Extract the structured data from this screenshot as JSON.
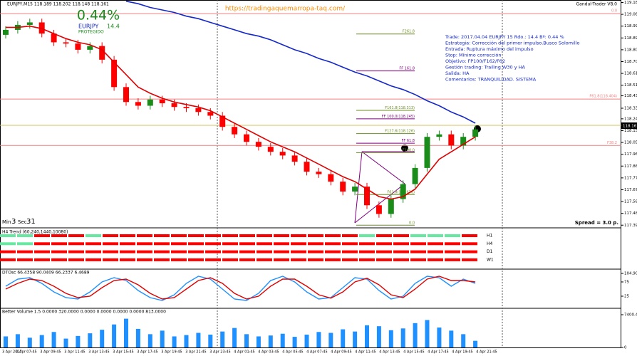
{
  "chart_data": [
    {
      "type": "candlestick",
      "title": "EURJPY,M15 118.189 118.202 118.148 118.161",
      "watermark": "Gandul-Trader V8.0",
      "url": "https://tradingaquemarropa-taq.com/",
      "gain": "0.44%",
      "symbol": "EURJPY",
      "pips": 14.4,
      "status": "PROTEGIDO",
      "notes": [
        "Trade: 2017.04.04 EURJPY 15  Rdo.: 14.4  Bº: 0.44 %",
        "Estrategia: Corrección  del primer impulso.Busco Solomillo",
        "Entrada: Ruptura máximo del impulso",
        "Stop: Mínimo corrección",
        "Objetivo: FP100/F162/F62",
        "Gestión trading: Trailing W30 y HA",
        "Salida: HA",
        "Comentarios: TRANQUILIDAD. SISTEMA"
      ],
      "timer": {
        "min_label": "Min",
        "min": 3,
        "sec_label": "Sec",
        "sec": 31
      },
      "spread": "Spread = 3.0 p.",
      "last_price": 118.161,
      "up_color": "#1a8c1a",
      "down_color": "#ff0000",
      "open": [
        118.92,
        118.96,
        119.0,
        119.02,
        118.93,
        118.86,
        118.85,
        118.8,
        118.83,
        118.72,
        118.5,
        118.38,
        118.35,
        118.4,
        118.37,
        118.34,
        118.33,
        118.3,
        118.27,
        118.18,
        118.12,
        118.06,
        118.02,
        117.98,
        117.95,
        117.9,
        117.82,
        117.8,
        117.74,
        117.66,
        117.7,
        117.55,
        117.48,
        117.6,
        117.72,
        117.85,
        118.1,
        118.12,
        118.03,
        118.1
      ],
      "high": [
        118.99,
        119.03,
        119.05,
        119.05,
        118.96,
        118.89,
        118.88,
        118.86,
        118.86,
        118.75,
        118.53,
        118.41,
        118.43,
        118.43,
        118.4,
        118.37,
        118.36,
        118.33,
        118.3,
        118.21,
        118.15,
        118.09,
        118.05,
        118.01,
        117.98,
        117.93,
        117.85,
        117.83,
        117.77,
        117.73,
        117.73,
        117.58,
        117.63,
        117.75,
        117.88,
        118.13,
        118.15,
        118.15,
        118.13,
        118.19
      ],
      "low": [
        118.89,
        118.93,
        118.97,
        118.9,
        118.83,
        118.82,
        118.77,
        118.77,
        118.69,
        118.47,
        118.35,
        118.32,
        118.32,
        118.34,
        118.31,
        118.3,
        118.27,
        118.24,
        118.15,
        118.09,
        118.03,
        117.99,
        117.95,
        117.92,
        117.87,
        117.79,
        117.77,
        117.71,
        117.63,
        117.63,
        117.52,
        117.45,
        117.45,
        117.57,
        117.69,
        117.82,
        118.07,
        118.0,
        118.0,
        118.07
      ],
      "close": [
        118.96,
        119.0,
        119.02,
        118.93,
        118.86,
        118.85,
        118.8,
        118.83,
        118.72,
        118.5,
        118.38,
        118.35,
        118.4,
        118.37,
        118.34,
        118.33,
        118.3,
        118.27,
        118.18,
        118.12,
        118.06,
        118.02,
        117.98,
        117.95,
        117.9,
        117.82,
        117.8,
        117.74,
        117.66,
        117.7,
        117.55,
        117.48,
        117.6,
        117.72,
        117.85,
        118.1,
        118.12,
        118.03,
        118.1,
        118.16
      ],
      "lines": [
        {
          "color": "#e00000",
          "values": [
            118.98,
            118.98,
            118.99,
            118.97,
            118.93,
            118.89,
            118.86,
            118.84,
            118.8,
            118.7,
            118.6,
            118.5,
            118.45,
            118.41,
            118.38,
            118.36,
            118.34,
            118.31,
            118.26,
            118.21,
            118.16,
            118.11,
            118.06,
            118.02,
            117.98,
            117.93,
            117.88,
            117.83,
            117.78,
            117.74,
            117.68,
            117.62,
            117.6,
            117.62,
            117.68,
            117.8,
            117.92,
            117.98,
            118.04,
            118.1
          ]
        },
        {
          "color": "#1428c8",
          "values": [
            null,
            null,
            null,
            null,
            null,
            null,
            null,
            null,
            null,
            null,
            119.19,
            119.17,
            119.14,
            119.12,
            119.1,
            119.07,
            119.05,
            119.02,
            118.99,
            118.96,
            118.93,
            118.91,
            118.88,
            118.84,
            118.8,
            118.77,
            118.73,
            118.7,
            118.66,
            118.62,
            118.59,
            118.55,
            118.51,
            118.48,
            118.44,
            118.39,
            118.35,
            118.3,
            118.26,
            118.21
          ]
        }
      ],
      "levels": [
        {
          "label": "0.0",
          "value": 119.09,
          "color": "#f08080"
        },
        {
          "label": "F61.8(118.404)",
          "value": 118.404,
          "color": "#f08080"
        },
        {
          "label": "F38.2",
          "value": 118.031,
          "color": "#f08080"
        }
      ],
      "fibs": [
        {
          "label": "F261.8",
          "value": 118.927,
          "color": "#6b8e23"
        },
        {
          "label": "FF 161.8",
          "value": 118.63,
          "color": "#800080"
        },
        {
          "label": "F161.8(118.313)",
          "value": 118.313,
          "color": "#6b8e23"
        },
        {
          "label": "FF 100.0(118.245)",
          "value": 118.245,
          "color": "#800080"
        },
        {
          "label": "F127.6(118.126)",
          "value": 118.126,
          "color": "#6b8e23"
        },
        {
          "label": "FF 61.8",
          "value": 118.049,
          "color": "#800080"
        },
        {
          "label": "F100.0",
          "value": 117.973,
          "color": "#6b8e23"
        },
        {
          "label": "F61.8(117.636)",
          "value": 117.636,
          "color": "#6b8e23"
        },
        {
          "label": "0.0",
          "value": 117.39,
          "color": "#6b8e23"
        }
      ],
      "ylim": [
        117.38,
        119.2
      ],
      "yticks": [
        {
          "value": 119.18,
          "label": "119.180"
        },
        119.085,
        {
          "value": 118.99,
          "label": "118.990"
        },
        118.895,
        {
          "value": 118.8,
          "label": "118.800"
        },
        118.705,
        {
          "value": 118.61,
          "label": "118.610"
        },
        118.515,
        {
          "value": 118.43,
          "label": "118.430"
        },
        {
          "value": 118.33,
          "label": "118.330"
        },
        118.245,
        {
          "value": 118.15,
          "label": "118.150"
        },
        118.055,
        {
          "value": 117.96,
          "label": "117.960"
        },
        117.865,
        {
          "value": 117.77,
          "label": "117.770"
        },
        117.675,
        {
          "value": 117.58,
          "label": "117.580"
        },
        117.485,
        {
          "value": 117.39,
          "label": "117.390"
        }
      ]
    },
    {
      "type": "trend",
      "title": "H4 Trend (60,240,1440,10080)",
      "up_color": "#66e8a0",
      "down_color": "#ff0000",
      "rows": [
        {
          "label": "H1",
          "values": [
            1,
            1,
            0,
            0,
            0,
            1,
            0,
            0,
            0,
            0,
            0,
            0,
            0,
            0,
            0,
            0,
            0,
            0,
            0,
            0,
            0,
            1,
            0,
            0,
            1,
            1,
            1,
            0
          ]
        },
        {
          "label": "H4",
          "values": [
            1,
            1,
            0,
            0,
            0,
            0,
            0,
            0,
            0,
            0,
            0,
            0,
            0,
            0,
            0,
            0,
            0,
            0,
            0,
            0,
            0,
            0,
            0,
            0,
            0,
            0,
            0,
            0
          ]
        },
        {
          "label": "D1",
          "values": [
            0,
            0,
            0,
            0,
            0,
            0,
            0,
            0,
            0,
            0,
            0,
            0,
            0,
            0,
            0,
            0,
            0,
            0,
            0,
            0,
            0,
            0,
            0,
            0,
            0,
            0,
            0,
            0
          ]
        },
        {
          "label": "W1",
          "values": [
            0,
            0,
            0,
            0,
            0,
            0,
            0,
            0,
            0,
            0,
            0,
            0,
            0,
            0,
            0,
            0,
            0,
            0,
            0,
            0,
            0,
            0,
            0,
            0,
            0,
            0,
            0,
            0
          ]
        }
      ]
    },
    {
      "type": "line",
      "title": "DTOsc 66.4358 90.0409 66.2337 6.4689",
      "series": [
        {
          "color": "#1e90ff",
          "values": [
            60,
            85,
            90,
            70,
            40,
            20,
            15,
            40,
            75,
            90,
            80,
            45,
            20,
            10,
            30,
            70,
            95,
            85,
            50,
            15,
            10,
            35,
            80,
            95,
            75,
            40,
            15,
            20,
            55,
            90,
            85,
            45,
            15,
            25,
            70,
            95,
            90,
            60,
            85,
            70
          ]
        },
        {
          "color": "#e00000",
          "values": [
            50,
            70,
            85,
            80,
            60,
            35,
            20,
            25,
            55,
            80,
            85,
            65,
            35,
            15,
            20,
            50,
            80,
            90,
            70,
            35,
            15,
            25,
            60,
            85,
            85,
            60,
            30,
            18,
            40,
            75,
            88,
            65,
            30,
            20,
            50,
            85,
            95,
            80,
            80,
            75
          ]
        }
      ],
      "ylim": [
        -10,
        104.9062
      ],
      "yticks": [
        104.9062,
        75,
        25
      ]
    },
    {
      "type": "bar",
      "title": "Better Volume 1.5 0.0000 320.0000 0.0000 0.0000 0.0000 0.0000 813.0000",
      "color": "#1e90ff",
      "values": [
        2500,
        3000,
        2200,
        2800,
        3500,
        2000,
        2600,
        3200,
        4000,
        5200,
        6500,
        4200,
        3000,
        3800,
        2500,
        2800,
        3300,
        2900,
        3600,
        4400,
        3000,
        2500,
        2700,
        3100,
        2400,
        2900,
        3500,
        3300,
        4100,
        3600,
        5000,
        4800,
        3900,
        4300,
        5500,
        6200,
        4500,
        3800,
        3000,
        1500
      ],
      "ylim": [
        0,
        7400.4
      ],
      "yticks": [
        7400.4,
        0
      ],
      "time_labels": [
        "3 Apr 2017",
        "3 Apr 07:45",
        "3 Apr 09:45",
        "3 Apr 11:45",
        "3 Apr 13:45",
        "3 Apr 15:45",
        "3 Apr 17:45",
        "3 Apr 19:45",
        "3 Apr 21:45",
        "3 Apr 23:45",
        "4 Apr 01:45",
        "4 Apr 03:45",
        "4 Apr 05:45",
        "4 Apr 07:45",
        "4 Apr 09:45",
        "4 Apr 11:45",
        "4 Apr 13:45",
        "4 Apr 15:45",
        "4 Apr 17:45",
        "4 Apr 19:45",
        "4 Apr 21:45"
      ]
    }
  ]
}
